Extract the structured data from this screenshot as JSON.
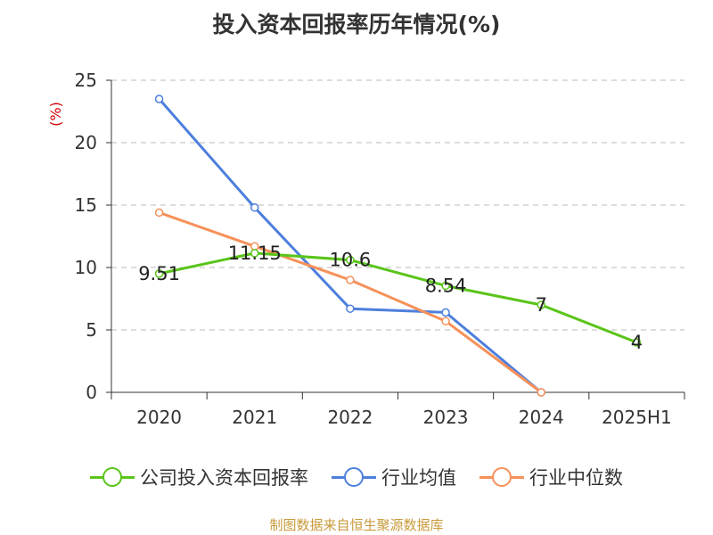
{
  "chart_data": {
    "type": "line",
    "title": "投入资本回报率历年情况(%)",
    "ylabel": "(%)",
    "categories": [
      "2020",
      "2021",
      "2022",
      "2023",
      "2024",
      "2025H1"
    ],
    "ylim": [
      0,
      25
    ],
    "yticks": [
      0,
      5,
      10,
      15,
      20,
      25
    ],
    "grid": true,
    "legend_position": "bottom",
    "series": [
      {
        "name": "公司投入资本回报率",
        "color": "#5ac41a",
        "values": [
          9.51,
          11.15,
          10.6,
          8.54,
          7,
          4
        ],
        "labels": [
          "9.51",
          "11.15",
          "10.6",
          "8.54",
          "7",
          "4"
        ]
      },
      {
        "name": "行业均值",
        "color": "#4d7fdd",
        "values": [
          23.5,
          14.8,
          6.7,
          6.4,
          0,
          null
        ]
      },
      {
        "name": "行业中位数",
        "color": "#f5915a",
        "values": [
          14.4,
          11.7,
          9.0,
          5.7,
          0,
          null
        ]
      }
    ]
  },
  "source_note": "制图数据来自恒生聚源数据库"
}
